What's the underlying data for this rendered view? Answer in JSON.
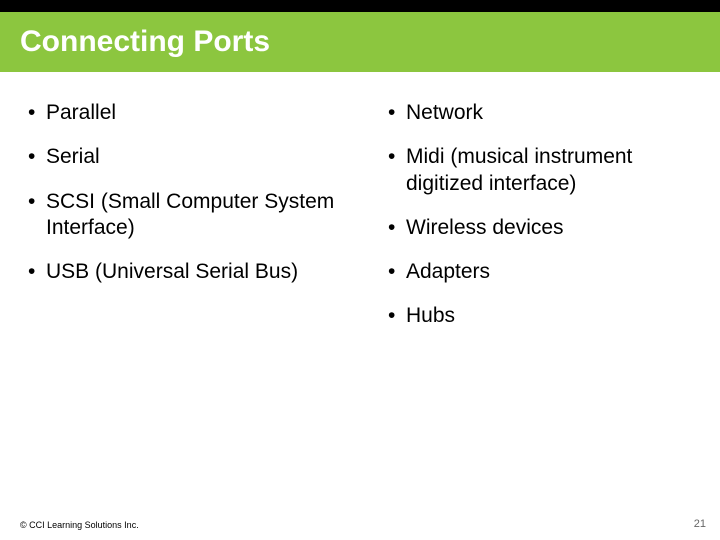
{
  "header": {
    "title": "Connecting Ports",
    "accent_color": "#8cc63f",
    "blackbar_color": "#000000",
    "title_color": "#ffffff",
    "title_fontsize": 30
  },
  "body": {
    "text_color": "#000000",
    "fontsize": 21,
    "left_column": [
      "Parallel",
      "Serial",
      "SCSI (Small Computer System Interface)",
      "USB (Universal Serial Bus)"
    ],
    "right_column": [
      "Network",
      "Midi (musical instrument digitized interface)",
      "Wireless devices",
      "Adapters",
      "Hubs"
    ]
  },
  "footer": {
    "copyright": "© CCI Learning Solutions Inc.",
    "page_number": "21",
    "fontsize": 9
  },
  "background_color": "#ffffff"
}
